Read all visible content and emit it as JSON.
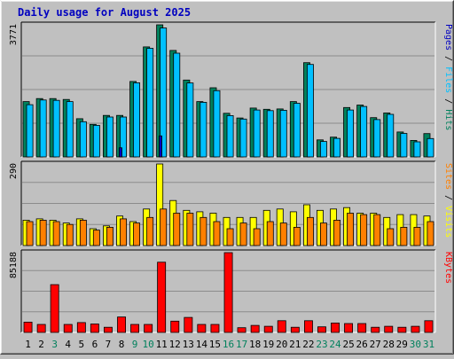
{
  "page": {
    "title": "Daily usage for August 2025"
  },
  "colors": {
    "background": "#c0c0c0",
    "plot_background": "#c0c0c0",
    "gridline": "#8c8c8c",
    "title": "#0000c0",
    "hits": "#00805c",
    "files": "#00c0ff",
    "pages": "#0000c0",
    "visits": "#ffff00",
    "sites": "#ff8000",
    "kbytes": "#ff0000",
    "weekday_label": "#000000",
    "weekend_label": "#00805c"
  },
  "chart_data": [
    {
      "type": "bar",
      "name": "hits-files-pages",
      "ylabel_parts": [
        {
          "text": "Pages",
          "color": "pages"
        },
        {
          "text": " / ",
          "color": "weekday_label"
        },
        {
          "text": "Files",
          "color": "files"
        },
        {
          "text": " / ",
          "color": "weekday_label"
        },
        {
          "text": "Hits",
          "color": "hits"
        }
      ],
      "ymax_label": "3771",
      "ylim": [
        0,
        3771
      ],
      "grid": true,
      "categories": [
        "1",
        "2",
        "3",
        "4",
        "5",
        "6",
        "7",
        "8",
        "9",
        "10",
        "11",
        "12",
        "13",
        "14",
        "15",
        "16",
        "17",
        "18",
        "19",
        "20",
        "21",
        "22",
        "23",
        "24",
        "25",
        "26",
        "27",
        "28",
        "29",
        "30",
        "31"
      ],
      "series": [
        {
          "name": "Hits",
          "color": "hits",
          "values": [
            1580,
            1665,
            1665,
            1640,
            1090,
            930,
            1185,
            1185,
            2155,
            3140,
            3771,
            3040,
            2195,
            1580,
            1975,
            1245,
            1110,
            1395,
            1360,
            1370,
            1580,
            2690,
            485,
            565,
            1410,
            1480,
            1120,
            1255,
            710,
            470,
            665
          ]
        },
        {
          "name": "Files",
          "color": "files",
          "values": [
            1490,
            1625,
            1615,
            1580,
            1005,
            900,
            1140,
            1140,
            2115,
            3100,
            3680,
            2960,
            2110,
            1560,
            1890,
            1180,
            1080,
            1340,
            1320,
            1330,
            1530,
            2640,
            440,
            530,
            1340,
            1440,
            1065,
            1215,
            670,
            430,
            525
          ]
        },
        {
          "name": "Pages",
          "color": "pages",
          "values": [
            0,
            0,
            0,
            0,
            0,
            0,
            0,
            260,
            0,
            0,
            600,
            0,
            0,
            0,
            0,
            0,
            0,
            0,
            0,
            0,
            0,
            0,
            0,
            0,
            0,
            0,
            0,
            0,
            0,
            0,
            0
          ]
        }
      ]
    },
    {
      "type": "bar",
      "name": "visits-sites",
      "ylabel_parts": [
        {
          "text": "Sites",
          "color": "sites"
        },
        {
          "text": " / ",
          "color": "weekday_label"
        },
        {
          "text": "Visits",
          "color": "visits"
        }
      ],
      "ymax_label": "290",
      "ylim": [
        0,
        290
      ],
      "grid": true,
      "categories": [
        "1",
        "2",
        "3",
        "4",
        "5",
        "6",
        "7",
        "8",
        "9",
        "10",
        "11",
        "12",
        "13",
        "14",
        "15",
        "16",
        "17",
        "18",
        "19",
        "20",
        "21",
        "22",
        "23",
        "24",
        "25",
        "26",
        "27",
        "28",
        "29",
        "30",
        "31"
      ],
      "series": [
        {
          "name": "Visits",
          "color": "visits",
          "values": [
            90,
            95,
            90,
            80,
            95,
            60,
            70,
            105,
            85,
            130,
            290,
            160,
            125,
            120,
            115,
            100,
            100,
            100,
            125,
            130,
            120,
            145,
            125,
            130,
            135,
            115,
            115,
            100,
            110,
            110,
            105
          ]
        },
        {
          "name": "Sites",
          "color": "sites",
          "values": [
            85,
            90,
            85,
            75,
            90,
            55,
            65,
            95,
            80,
            100,
            130,
            115,
            115,
            100,
            85,
            60,
            80,
            60,
            85,
            80,
            65,
            100,
            80,
            90,
            115,
            110,
            110,
            60,
            65,
            65,
            85
          ]
        }
      ]
    },
    {
      "type": "bar",
      "name": "kbytes",
      "ylabel_parts": [
        {
          "text": "KBytes",
          "color": "kbytes"
        }
      ],
      "ymax_label": "85188",
      "ylim": [
        0,
        85188
      ],
      "grid": true,
      "categories": [
        "1",
        "2",
        "3",
        "4",
        "5",
        "6",
        "7",
        "8",
        "9",
        "10",
        "11",
        "12",
        "13",
        "14",
        "15",
        "16",
        "17",
        "18",
        "19",
        "20",
        "21",
        "22",
        "23",
        "24",
        "25",
        "26",
        "27",
        "28",
        "29",
        "30",
        "31"
      ],
      "series": [
        {
          "name": "KBytes",
          "color": "kbytes",
          "values": [
            11000,
            8500,
            51000,
            8500,
            10500,
            9000,
            5500,
            16500,
            8500,
            8500,
            75000,
            12000,
            16000,
            8500,
            8500,
            85188,
            5000,
            7500,
            6500,
            12500,
            5500,
            12500,
            6000,
            10000,
            9500,
            9500,
            5500,
            6500,
            5500,
            6500,
            12500
          ]
        }
      ]
    }
  ],
  "x_axis": {
    "weekend_days": [
      "3",
      "9",
      "10",
      "16",
      "17",
      "23",
      "24",
      "30",
      "31"
    ]
  }
}
